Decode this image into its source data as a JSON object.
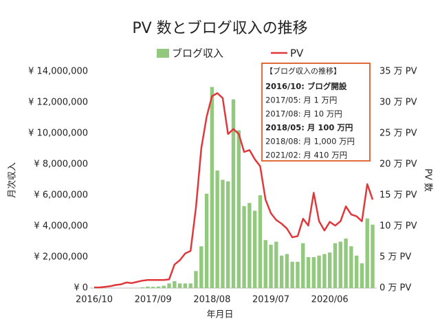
{
  "chart_data": {
    "type": "bar-line",
    "title": "PV 数とブログ収入の推移",
    "x_label": "年月日",
    "y_label": "月次収入",
    "y2_label": "PV 数",
    "categories": [
      "2016/10",
      null,
      null,
      null,
      null,
      null,
      null,
      null,
      null,
      null,
      null,
      "2017/09",
      null,
      null,
      null,
      null,
      null,
      null,
      null,
      null,
      null,
      null,
      "2018/08",
      null,
      null,
      null,
      null,
      null,
      null,
      null,
      null,
      null,
      null,
      "2019/07",
      null,
      null,
      null,
      null,
      null,
      null,
      null,
      null,
      null,
      null,
      "2020/06",
      null,
      null,
      null,
      null,
      null,
      null,
      null,
      null
    ],
    "series": [
      {
        "name": "ブログ収入",
        "type": "bar",
        "color": "#93c97f",
        "values": [
          0,
          0,
          0,
          0,
          0,
          0,
          10000,
          10000,
          20000,
          50000,
          100000,
          80000,
          100000,
          150000,
          300000,
          450000,
          300000,
          300000,
          300000,
          1100000,
          2700000,
          6100000,
          13000000,
          7600000,
          7000000,
          6900000,
          12200000,
          10200000,
          5300000,
          5500000,
          5000000,
          6000000,
          3100000,
          2800000,
          3000000,
          2100000,
          2200000,
          1700000,
          1700000,
          2900000,
          2000000,
          2000000,
          2100000,
          2200000,
          2300000,
          2900000,
          3000000,
          3200000,
          2700000,
          2100000,
          1600000,
          4500000,
          4100000
        ]
      },
      {
        "name": "PV",
        "type": "line",
        "axis": "y2",
        "color": "#e0383a",
        "values": [
          0.1,
          0.1,
          0.2,
          0.3,
          0.5,
          0.6,
          0.9,
          0.8,
          1.0,
          1.2,
          1.3,
          1.3,
          1.3,
          1.3,
          1.4,
          3.8,
          4.5,
          5.6,
          6.0,
          13,
          22.6,
          27.7,
          31,
          31.5,
          30.7,
          24.9,
          25.7,
          24.9,
          22,
          22.3,
          20.8,
          19.7,
          14.3,
          12.1,
          11,
          10.4,
          9.6,
          8.2,
          8.4,
          11.2,
          10.1,
          15.4,
          10.8,
          9.3,
          10.7,
          10.1,
          10.8,
          13.2,
          11.9,
          11.6,
          10.8,
          16.8,
          14.3
        ]
      }
    ],
    "ylim": [
      0,
      14000000
    ],
    "yticks": [
      {
        "value": 0,
        "label": "¥ 0"
      },
      {
        "value": 2000000,
        "label": "¥ 2,000,000"
      },
      {
        "value": 4000000,
        "label": "¥ 4,000,000"
      },
      {
        "value": 6000000,
        "label": "¥ 6,000,000"
      },
      {
        "value": 8000000,
        "label": "¥ 8,000,000"
      },
      {
        "value": 10000000,
        "label": "¥ 10,000,000"
      },
      {
        "value": 12000000,
        "label": "¥ 12,000,000"
      },
      {
        "value": 14000000,
        "label": "¥ 14,000,000"
      }
    ],
    "y2lim": [
      0,
      35
    ],
    "y2ticks": [
      {
        "value": 0,
        "label": "0 万 PV"
      },
      {
        "value": 5,
        "label": "5 万 PV"
      },
      {
        "value": 10,
        "label": "10 万 PV"
      },
      {
        "value": 15,
        "label": "15 万 PV"
      },
      {
        "value": 20,
        "label": "20 万 PV"
      },
      {
        "value": 25,
        "label": "25 万 PV"
      },
      {
        "value": 30,
        "label": "30 万 PV"
      },
      {
        "value": 35,
        "label": "35 万 PV"
      }
    ],
    "legend": "top",
    "annotation": {
      "title": "【ブログ収入の推移】",
      "lines": [
        {
          "text": "2016/10: ブログ開設",
          "bold": true
        },
        {
          "text": "2017/05: 月 1 万円",
          "bold": false
        },
        {
          "text": "2017/08: 月 10 万円",
          "bold": false
        },
        {
          "text": "2018/05: 月 100 万円",
          "bold": true
        },
        {
          "text": "2018/08: 月 1,000 万円",
          "bold": false
        },
        {
          "text": "2021/02: 月 410 万円",
          "bold": false
        }
      ]
    }
  }
}
